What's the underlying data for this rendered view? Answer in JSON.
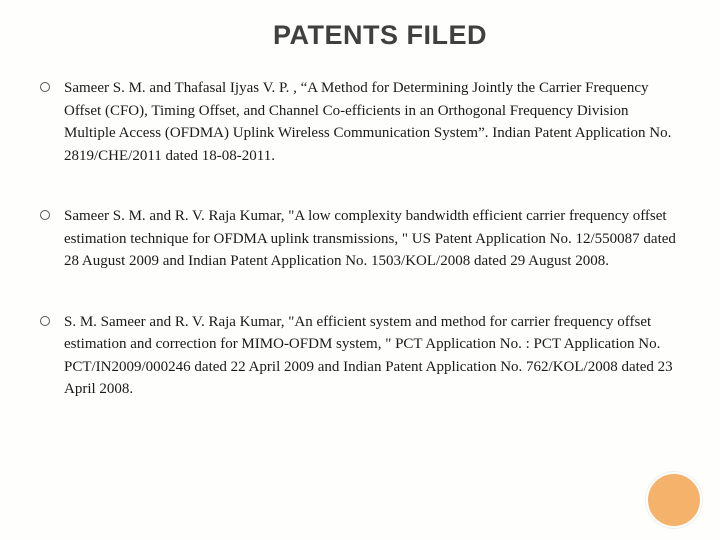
{
  "title": "PATENTS FILED",
  "title_fontsize": 27,
  "title_color": "#404040",
  "body_fontsize": 15,
  "body_color": "#1a1a1a",
  "background_color": "#fefefc",
  "bullet_style": "hollow-circle",
  "bullet_border_color": "#555555",
  "decor_circle_color": "#f4b26a",
  "items": [
    "Sameer S. M. and Thafasal Ijyas V. P. , “A Method for Determining Jointly the Carrier Frequency Offset (CFO), Timing Offset, and Channel Co-efficients in an Orthogonal Frequency Division Multiple Access (OFDMA) Uplink Wireless Communication System”. Indian Patent Application No. 2819/CHE/2011 dated 18-08-2011.",
    "Sameer S. M. and R. V. Raja Kumar, \"A low complexity bandwidth efficient carrier frequency offset estimation technique for OFDMA uplink transmissions, \" US Patent Application No. 12/550087 dated 28 August 2009 and Indian Patent Application No. 1503/KOL/2008 dated 29 August 2008.",
    " S. M. Sameer and R. V. Raja Kumar, \"An efficient system and method for carrier frequency offset estimation and correction for MIMO-OFDM system, \" PCT Application No. : PCT Application No. PCT/IN2009/000246 dated 22 April 2009 and Indian Patent Application No. 762/KOL/2008 dated 23 April 2008."
  ]
}
